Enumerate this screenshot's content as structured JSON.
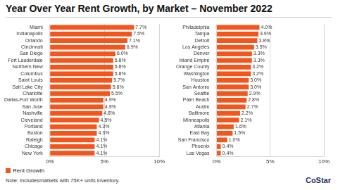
{
  "title": "Year Over Year Rent Growth, by Market – November 2022",
  "note": "Note: Includesmarkets with 75K+ units inventory.",
  "logo": "CoStar",
  "chart_data": [
    {
      "type": "bar",
      "orientation": "horizontal",
      "data_labels": true,
      "grid": true,
      "legend": "bottom left",
      "categories": [
        "Miami",
        "Indianapolis",
        "Orlando",
        "Cincinnati",
        "San Diego",
        "Fort Lauderdale",
        "Northern New",
        "Columbus",
        "Saint Louis",
        "Salt Lake City",
        "Charlotte",
        "Dallas-Fort Worth",
        "San Jose",
        "Nashville",
        "Cleveland",
        "Portland",
        "Boston",
        "Raleigh",
        "Chicago",
        "New York"
      ],
      "series": [
        {
          "name": "Rent Growth",
          "color": "#f2561d",
          "values": [
            7.7,
            7.5,
            7.1,
            6.9,
            6.0,
            5.8,
            5.8,
            5.8,
            5.7,
            5.6,
            5.5,
            4.9,
            4.9,
            4.8,
            4.5,
            4.3,
            4.3,
            4.1,
            4.1,
            4.1
          ],
          "value_labels": [
            "7.7%",
            "7.5%",
            "7.1%",
            "6.9%",
            "6.0%",
            "5.8%",
            "5.8%",
            "5.8%",
            "5.7%",
            "5.6%",
            "5.5%",
            "4.9%",
            "4.9%",
            "4.8%",
            "4.5%",
            "4.3%",
            "4.3%",
            "4.1%",
            "4.1%",
            "4.1%"
          ]
        }
      ],
      "xlim": [
        0,
        10
      ],
      "xticks": [
        {
          "value": 0,
          "label": "0%"
        },
        {
          "value": 5,
          "label": "5%"
        },
        {
          "value": 10,
          "label": "10%"
        }
      ]
    },
    {
      "type": "bar",
      "orientation": "horizontal",
      "data_labels": true,
      "grid": true,
      "categories": [
        "Philadelphia",
        "Tampa",
        "Detroit",
        "Los Angeles",
        "Denver",
        "Inland Empire",
        "Orange County",
        "Washington",
        "Houston",
        "San Antonio",
        "Seattle",
        "Palm Beach",
        "Austin",
        "Baltimore",
        "Minneapolis",
        "Atlanta",
        "East Bay",
        "San Francisco",
        "Phoenix",
        "Las Vegas"
      ],
      "series": [
        {
          "color": "#f2561d",
          "values": [
            4.0,
            3.9,
            3.8,
            3.5,
            3.3,
            3.3,
            3.2,
            3.2,
            3.0,
            3.0,
            2.9,
            2.8,
            2.7,
            2.2,
            2.1,
            1.6,
            1.5,
            1.0,
            0.4,
            0.4
          ],
          "value_labels": [
            "4.0%",
            "3.9%",
            "3.8%",
            "3.5%",
            "3.3%",
            "3.3%",
            "3.2%",
            "3.2%",
            "3.0%",
            "3.0%",
            "2.9%",
            "2.8%",
            "2.7%",
            "2.2%",
            "2.1%",
            "1.6%",
            "1.5%",
            "1.0%",
            "0.4%",
            "0.4%"
          ]
        }
      ],
      "xlim": [
        0,
        10
      ],
      "xticks": [
        {
          "value": 0,
          "label": "0%"
        },
        {
          "value": 5,
          "label": "5%"
        },
        {
          "value": 10,
          "label": "10%"
        }
      ]
    }
  ]
}
